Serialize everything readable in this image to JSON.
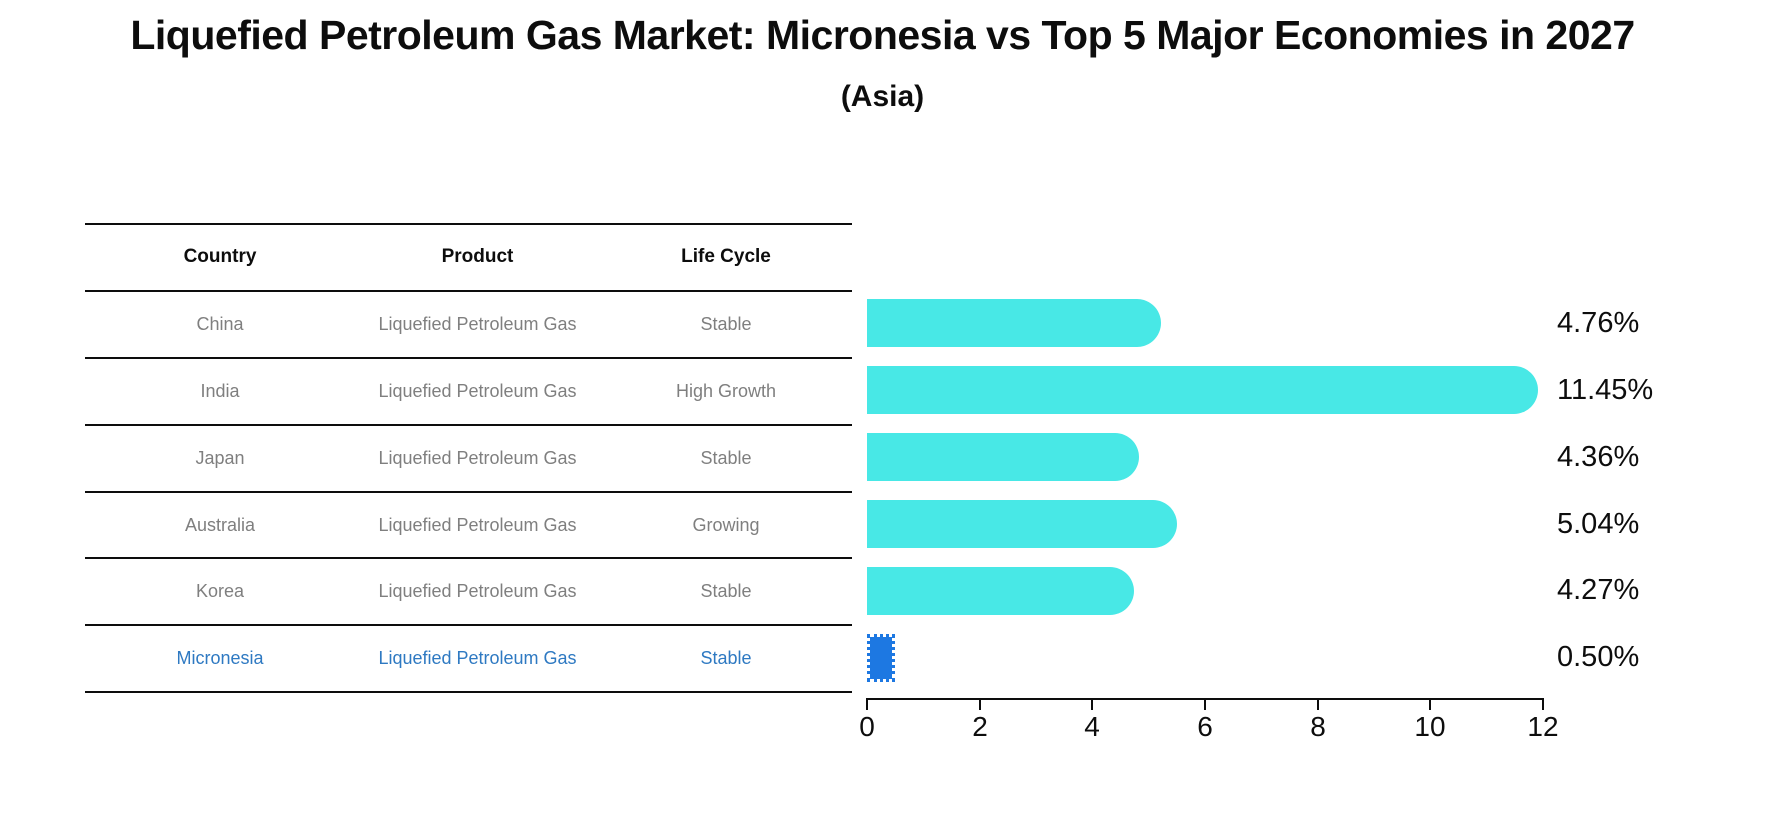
{
  "title": "Liquefied Petroleum Gas Market: Micronesia vs Top 5 Major Economies in 2027",
  "subtitle": "(Asia)",
  "table": {
    "headers": [
      "Country",
      "Product",
      "Life Cycle"
    ],
    "rows": [
      {
        "country": "China",
        "product": "Liquefied Petroleum Gas",
        "life_cycle": "Stable",
        "highlighted": false
      },
      {
        "country": "India",
        "product": "Liquefied Petroleum Gas",
        "life_cycle": "High Growth",
        "highlighted": false
      },
      {
        "country": "Japan",
        "product": "Liquefied Petroleum Gas",
        "life_cycle": "Stable",
        "highlighted": false
      },
      {
        "country": "Australia",
        "product": "Liquefied Petroleum Gas",
        "life_cycle": "Growing",
        "highlighted": false
      },
      {
        "country": "Korea",
        "product": "Liquefied Petroleum Gas",
        "life_cycle": "Stable",
        "highlighted": false
      },
      {
        "country": "Micronesia",
        "product": "Liquefied Petroleum Gas",
        "life_cycle": "Stable",
        "highlighted": true
      }
    ]
  },
  "chart_data": {
    "type": "bar",
    "orientation": "horizontal",
    "categories": [
      "China",
      "India",
      "Japan",
      "Australia",
      "Korea",
      "Micronesia"
    ],
    "values": [
      4.76,
      11.45,
      4.36,
      5.04,
      4.27,
      0.5
    ],
    "value_labels": [
      "4.76%",
      "11.45%",
      "4.36%",
      "5.04%",
      "4.27%",
      "0.50%"
    ],
    "xlim": [
      0,
      12
    ],
    "xticks": [
      0,
      2,
      4,
      6,
      8,
      10,
      12
    ],
    "grid": false,
    "legend": false,
    "bar_color": "#48e8e6",
    "highlight_color": "#1d78e2",
    "highlight_index": 5,
    "highlight_text_color": "#2e79c2"
  }
}
